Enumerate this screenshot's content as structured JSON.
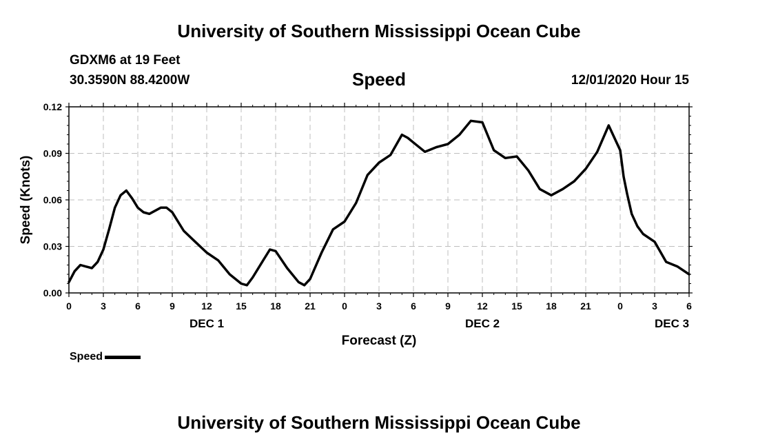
{
  "header": {
    "title": "University of Southern Mississippi Ocean Cube",
    "station": "GDXM6 at 19 Feet",
    "coords": "30.3590N 88.4200W",
    "chart_title": "Speed",
    "timestamp": "12/01/2020 Hour 15"
  },
  "footer": {
    "title": "University of Southern Mississippi Ocean Cube"
  },
  "legend": {
    "label": "Speed",
    "color": "#000000"
  },
  "chart_data": {
    "type": "line",
    "ylabel": "Speed (Knots)",
    "xlabel": "Forecast (Z)",
    "ylim": [
      0,
      0.12
    ],
    "yticks": [
      "0.00",
      "0.03",
      "0.06",
      "0.09",
      "0.12"
    ],
    "xlim": [
      0,
      54
    ],
    "xticks": [
      "0",
      "3",
      "6",
      "9",
      "12",
      "15",
      "18",
      "21",
      "0",
      "3",
      "6",
      "9",
      "12",
      "15",
      "18",
      "21",
      "0",
      "3",
      "6"
    ],
    "date_labels": [
      {
        "label": "DEC 1",
        "hour": 12
      },
      {
        "label": "DEC 2",
        "hour": 36
      },
      {
        "label": "DEC 3",
        "hour": 52.5
      }
    ],
    "grid": true,
    "legend_position": "bottom-left",
    "series": [
      {
        "name": "Speed",
        "color": "#000000",
        "x": [
          0,
          0.5,
          1,
          1.5,
          2,
          2.5,
          3,
          3.5,
          4,
          4.5,
          5,
          5.5,
          6,
          6.5,
          7,
          7.5,
          8,
          8.5,
          9,
          9.5,
          10,
          11,
          12,
          13,
          14,
          15,
          15.5,
          16,
          17,
          17.5,
          18,
          19,
          20,
          20.5,
          21,
          22,
          23,
          24,
          25,
          26,
          27,
          28,
          29,
          29.5,
          30,
          31,
          32,
          33,
          34,
          35,
          36,
          37,
          38,
          39,
          40,
          41,
          42,
          43,
          44,
          45,
          46,
          47,
          48,
          48.3,
          48.6,
          49,
          49.5,
          50,
          51,
          52,
          53,
          54
        ],
        "y": [
          0.007,
          0.014,
          0.018,
          0.017,
          0.016,
          0.02,
          0.028,
          0.041,
          0.055,
          0.063,
          0.066,
          0.061,
          0.055,
          0.052,
          0.051,
          0.053,
          0.055,
          0.055,
          0.052,
          0.046,
          0.04,
          0.033,
          0.026,
          0.021,
          0.012,
          0.006,
          0.005,
          0.01,
          0.022,
          0.028,
          0.027,
          0.016,
          0.007,
          0.005,
          0.009,
          0.026,
          0.041,
          0.046,
          0.058,
          0.076,
          0.084,
          0.089,
          0.102,
          0.1,
          0.097,
          0.091,
          0.094,
          0.096,
          0.102,
          0.111,
          0.11,
          0.092,
          0.087,
          0.088,
          0.079,
          0.067,
          0.063,
          0.067,
          0.072,
          0.08,
          0.091,
          0.108,
          0.092,
          0.075,
          0.064,
          0.051,
          0.043,
          0.038,
          0.033,
          0.02,
          0.017,
          0.012
        ]
      }
    ]
  }
}
